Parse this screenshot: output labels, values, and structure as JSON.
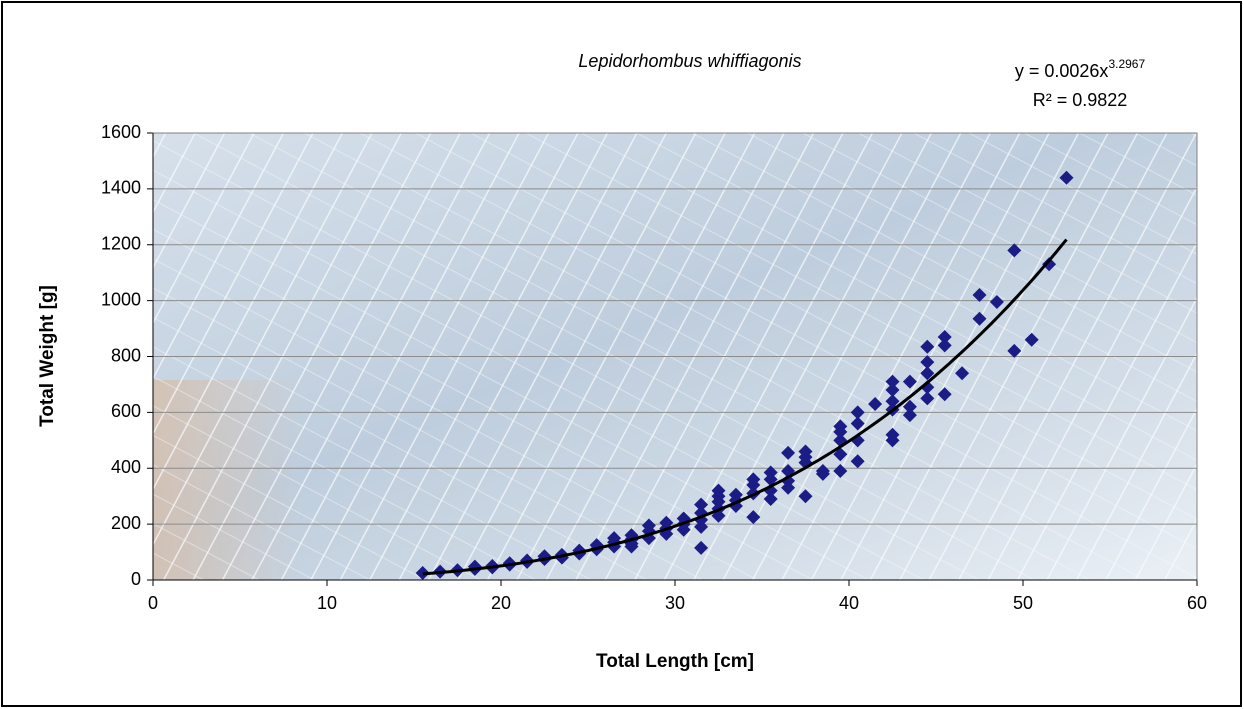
{
  "chart_data": {
    "type": "scatter",
    "title": "Lepidorhombus whiffiagonis",
    "x_label": "Total Length [cm]",
    "y_label": "Total Weight [g]",
    "x": [
      15.5,
      16.5,
      17.5,
      18.5,
      18.5,
      19.5,
      19.5,
      20.5,
      20.5,
      21.5,
      21.5,
      22.5,
      22.5,
      23.5,
      23.5,
      24.5,
      24.5,
      25.5,
      25.5,
      26.5,
      26.5,
      26.5,
      27.5,
      27.5,
      27.5,
      27.5,
      28.5,
      28.5,
      28.5,
      29.5,
      29.5,
      29.5,
      30.5,
      30.5,
      30.5,
      31.5,
      31.5,
      31.5,
      31.5,
      31.5,
      32.5,
      32.5,
      32.5,
      32.5,
      32.5,
      33.5,
      33.5,
      33.5,
      34.5,
      34.5,
      34.5,
      34.5,
      35.5,
      35.5,
      35.5,
      35.5,
      36.5,
      36.5,
      36.5,
      36.5,
      37.5,
      37.5,
      37.5,
      37.5,
      38.5,
      38.5,
      39.5,
      39.5,
      39.5,
      39.5,
      39.5,
      40.5,
      40.5,
      40.5,
      40.5,
      41.5,
      42.5,
      42.5,
      42.5,
      42.5,
      42.5,
      42.5,
      43.5,
      43.5,
      43.5,
      44.5,
      44.5,
      44.5,
      44.5,
      44.5,
      45.5,
      45.5,
      45.5,
      46.5,
      47.5,
      47.5,
      48.5,
      49.5,
      49.5,
      50.5,
      51.5,
      52.5
    ],
    "values": [
      25,
      30,
      35,
      40,
      48,
      50,
      45,
      55,
      60,
      65,
      70,
      75,
      85,
      80,
      90,
      95,
      105,
      110,
      125,
      120,
      135,
      150,
      130,
      145,
      160,
      120,
      150,
      175,
      195,
      165,
      185,
      205,
      180,
      200,
      220,
      115,
      190,
      215,
      240,
      270,
      230,
      255,
      280,
      300,
      320,
      265,
      285,
      305,
      225,
      310,
      340,
      360,
      290,
      320,
      360,
      385,
      330,
      355,
      390,
      455,
      300,
      420,
      440,
      460,
      380,
      390,
      390,
      450,
      500,
      530,
      550,
      425,
      500,
      560,
      600,
      630,
      500,
      520,
      610,
      640,
      680,
      710,
      590,
      620,
      710,
      650,
      690,
      740,
      780,
      835,
      665,
      840,
      870,
      740,
      935,
      1020,
      995,
      820,
      1180,
      860,
      1130,
      1440
    ],
    "color": "#1c1c86",
    "marker": "diamond",
    "trendline": {
      "type": "power",
      "coefficient": 0.0026,
      "exponent": 3.2967,
      "color": "#000000",
      "equation_label": "y = 0.0026x",
      "exponent_label": "3.2967",
      "r2_label": "R² = 0.9822"
    },
    "xlim": [
      0,
      60
    ],
    "xticks": [
      0,
      10,
      20,
      30,
      40,
      50,
      60
    ],
    "ylim": [
      0,
      1600
    ],
    "yticks": [
      0,
      200,
      400,
      600,
      800,
      1000,
      1200,
      1400,
      1600
    ],
    "grid": true
  }
}
